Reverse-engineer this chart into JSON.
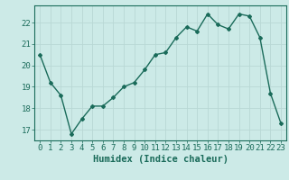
{
  "x": [
    0,
    1,
    2,
    3,
    4,
    5,
    6,
    7,
    8,
    9,
    10,
    11,
    12,
    13,
    14,
    15,
    16,
    17,
    18,
    19,
    20,
    21,
    22,
    23
  ],
  "y": [
    20.5,
    19.2,
    18.6,
    16.8,
    17.5,
    18.1,
    18.1,
    18.5,
    19.0,
    19.2,
    19.8,
    20.5,
    20.6,
    21.3,
    21.8,
    21.6,
    22.4,
    21.9,
    21.7,
    22.4,
    22.3,
    21.3,
    18.7,
    17.3
  ],
  "line_color": "#1a6b5a",
  "bg_color": "#cceae7",
  "grid_color": "#b8d8d5",
  "axis_color": "#1a6b5a",
  "tick_color": "#1a6b5a",
  "xlabel": "Humidex (Indice chaleur)",
  "ylim": [
    16.5,
    22.8
  ],
  "xlim": [
    -0.5,
    23.5
  ],
  "yticks": [
    17,
    18,
    19,
    20,
    21,
    22
  ],
  "xticks": [
    0,
    1,
    2,
    3,
    4,
    5,
    6,
    7,
    8,
    9,
    10,
    11,
    12,
    13,
    14,
    15,
    16,
    17,
    18,
    19,
    20,
    21,
    22,
    23
  ],
  "marker": "D",
  "markersize": 2.0,
  "linewidth": 1.0,
  "tick_fontsize": 6.5,
  "label_fontsize": 7.5
}
